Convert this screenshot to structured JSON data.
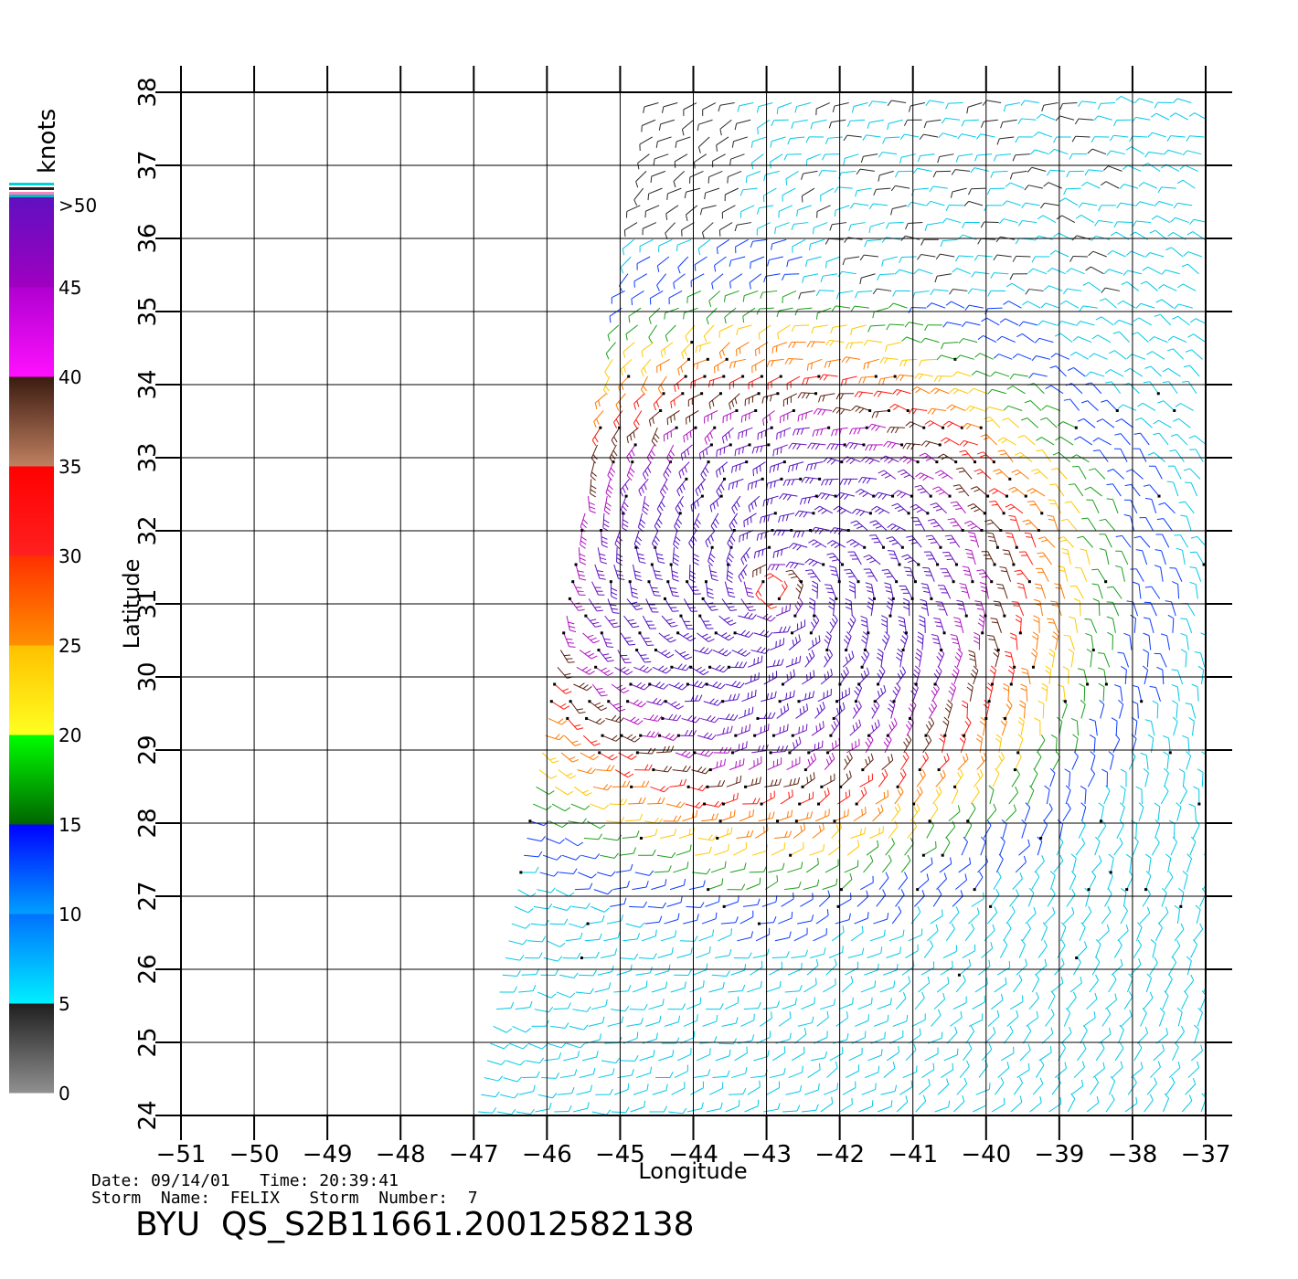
{
  "legend": {
    "unit": "knots",
    "labels": [
      "0",
      "5",
      "10",
      "15",
      "20",
      "25",
      "30",
      "35",
      "40",
      "45",
      ">50"
    ],
    "bands": [
      {
        "range": "0-5",
        "colors": [
          "#909090",
          "#1e1e1e"
        ]
      },
      {
        "range": "5-10",
        "colors": [
          "#00f0ff",
          "#0070ff"
        ]
      },
      {
        "range": "10-15",
        "colors": [
          "#00a0ff",
          "#0000ff"
        ]
      },
      {
        "range": "15-20",
        "colors": [
          "#006400",
          "#00ff00"
        ]
      },
      {
        "range": "20-25",
        "colors": [
          "#ffff20",
          "#ffc000"
        ]
      },
      {
        "range": "25-30",
        "colors": [
          "#ff9000",
          "#ff3000"
        ]
      },
      {
        "range": "30-35",
        "colors": [
          "#ff2020",
          "#ff0000"
        ]
      },
      {
        "range": "35-40",
        "colors": [
          "#c08060",
          "#3a1a10"
        ]
      },
      {
        "range": "40-45",
        "colors": [
          "#ff10ff",
          "#b000d0"
        ]
      },
      {
        "range": "45-50",
        "colors": [
          "#a000c0",
          "#6010c0"
        ]
      }
    ]
  },
  "axes": {
    "xlabel": "Longitude",
    "ylabel": "Latitude",
    "x_ticks": [
      "−51",
      "−50",
      "−49",
      "−48",
      "−47",
      "−46",
      "−45",
      "−44",
      "−43",
      "−42",
      "−41",
      "−40",
      "−39",
      "−38",
      "−37"
    ],
    "y_ticks": [
      "24",
      "25",
      "26",
      "27",
      "28",
      "29",
      "30",
      "31",
      "32",
      "33",
      "34",
      "35",
      "36",
      "37",
      "38"
    ],
    "xlim": [
      -51,
      -37
    ],
    "ylim": [
      24,
      38
    ]
  },
  "storm": {
    "date_line": "Date: 09/14/01   Time: 20:39:41",
    "name_line": "Storm  Name:  FELIX   Storm  Number:  7",
    "product_id": "BYU  QS_S2B11661.20012582138"
  },
  "map_data": {
    "type": "wind-barb-field",
    "swath_corners_lonlat": [
      [
        -47.0,
        24.0
      ],
      [
        -36.9,
        24.0
      ],
      [
        -36.9,
        38.0
      ],
      [
        -44.5,
        38.0
      ]
    ],
    "storm_center_lonlat": [
      -42.9,
      31.2
    ],
    "speed_color_bins_knots": [
      0,
      5,
      10,
      15,
      20,
      25,
      30,
      35,
      40,
      45,
      50
    ],
    "colors_by_bin": [
      "#2a2a2a",
      "#00c8e8",
      "#0a3cff",
      "#1aa01a",
      "#ffc800",
      "#ff7800",
      "#ff1a10",
      "#5a2010",
      "#b010c0",
      "#7010c0",
      "#5010c0"
    ],
    "rain_flag_color": "#000000"
  }
}
